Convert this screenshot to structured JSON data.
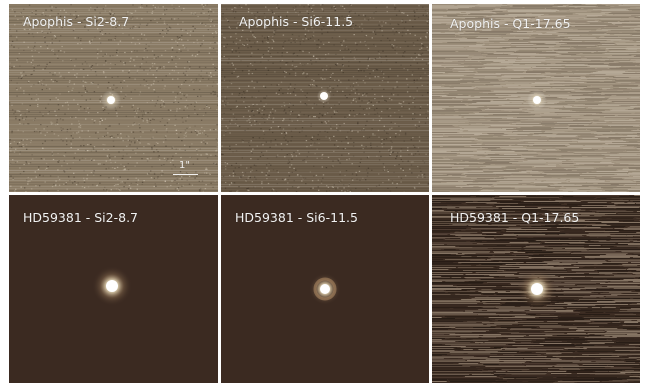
{
  "figure": {
    "panels": [
      {
        "label": "Apophis - Si2-8.7",
        "bg": "#8a7b65",
        "noise": "grain",
        "source": "faint"
      },
      {
        "label": "Apophis - Si6-11.5",
        "bg": "#6b5c49",
        "noise": "grain",
        "source": "faint-small"
      },
      {
        "label": "Apophis - Q1-17.65",
        "bg": "#a29480",
        "noise": "streak",
        "source": "faint"
      },
      {
        "label": "HD59381 - Si2-8.7",
        "bg": "#3b2a21",
        "noise": "none",
        "source": "star"
      },
      {
        "label": "HD59381 - Si6-11.5",
        "bg": "#3b2a21",
        "noise": "none",
        "source": "star-ring"
      },
      {
        "label": "HD59381 - Q1-17.65",
        "bg": "#3e2e24",
        "noise": "streak-strong",
        "source": "star"
      }
    ],
    "scale_bar_label": "1\""
  }
}
